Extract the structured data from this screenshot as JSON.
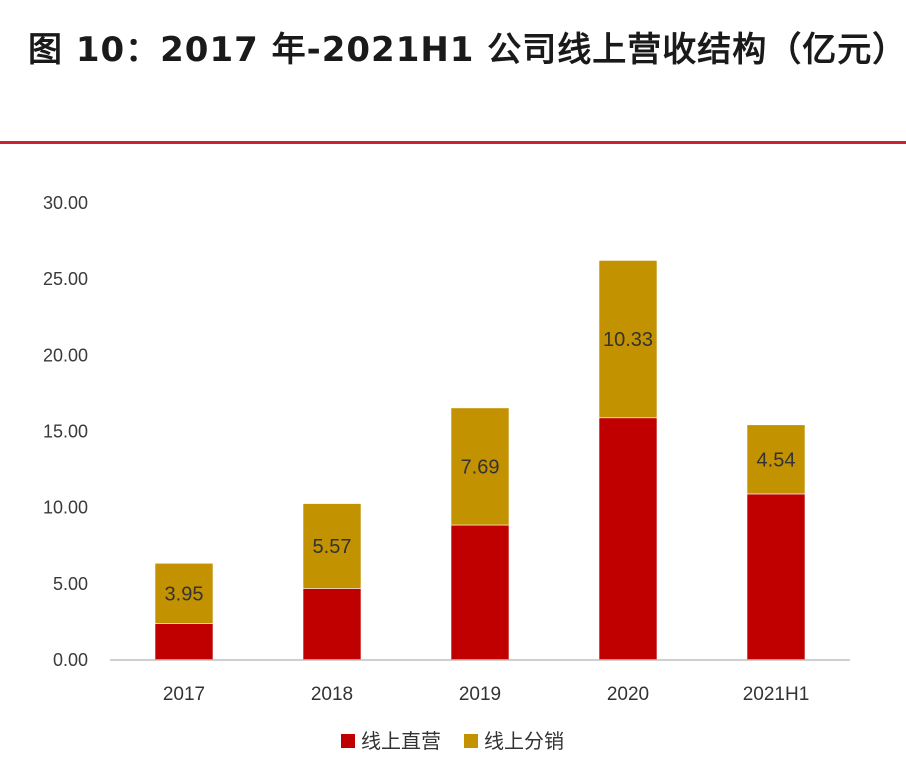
{
  "title": "图 10：2017 年-2021H1 公司线上营收结构（亿元）",
  "chart_data": {
    "type": "bar",
    "stacked": true,
    "categories": [
      "2017",
      "2018",
      "2019",
      "2020",
      "2021H1"
    ],
    "series": [
      {
        "name": "线上直营",
        "color": "#c00000",
        "values": [
          2.4,
          4.7,
          8.86,
          15.9,
          10.9
        ]
      },
      {
        "name": "线上分销",
        "color": "#c39200",
        "values": [
          3.95,
          5.57,
          7.69,
          10.33,
          4.54
        ]
      }
    ],
    "data_labels": {
      "线上直营": [
        "",
        "",
        "",
        "",
        ""
      ],
      "线上分销": [
        "3.95",
        "5.57",
        "7.69",
        "10.33",
        "4.54"
      ]
    },
    "ylim": [
      0,
      30
    ],
    "yticks": [
      "0.00",
      "5.00",
      "10.00",
      "15.00",
      "20.00",
      "25.00",
      "30.00"
    ],
    "grid": false,
    "legend": "bottom",
    "xlabel": "",
    "ylabel": ""
  }
}
